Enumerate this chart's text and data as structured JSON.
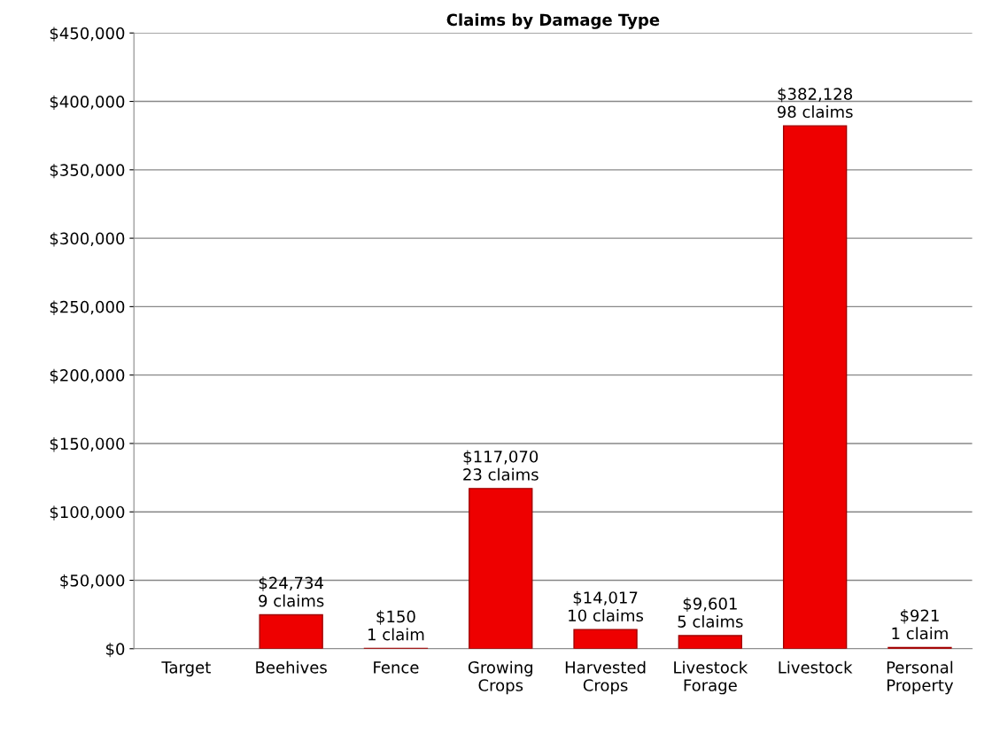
{
  "chart_data": {
    "type": "bar",
    "title": "Claims by Damage Type",
    "categories": [
      "Target",
      "Beehives",
      "Fence",
      "Growing Crops",
      "Harvested Crops",
      "Livestock Forage",
      "Livestock",
      "Personal Property"
    ],
    "values": [
      null,
      24734,
      150,
      117070,
      14017,
      9601,
      382128,
      921
    ],
    "value_labels": [
      null,
      "$24,734\n9 claims",
      "$150\n1 claim",
      "$117,070\n23 claims",
      "$14,017\n10 claims",
      "$9,601\n5 claims",
      "$382,128\n98 claims",
      "$921\n1 claim"
    ],
    "color": "#ee0000",
    "ylim": [
      0,
      450000
    ],
    "yticks": [
      {
        "value": 0,
        "label": "$0"
      },
      {
        "value": 50000,
        "label": "$50,000"
      },
      {
        "value": 100000,
        "label": "$100,000"
      },
      {
        "value": 150000,
        "label": "$150,000"
      },
      {
        "value": 200000,
        "label": "$200,000"
      },
      {
        "value": 250000,
        "label": "$250,000"
      },
      {
        "value": 300000,
        "label": "$300,000"
      },
      {
        "value": 350000,
        "label": "$350,000"
      },
      {
        "value": 400000,
        "label": "$400,000"
      },
      {
        "value": 450000,
        "label": "$450,000"
      }
    ],
    "grid": "y"
  }
}
